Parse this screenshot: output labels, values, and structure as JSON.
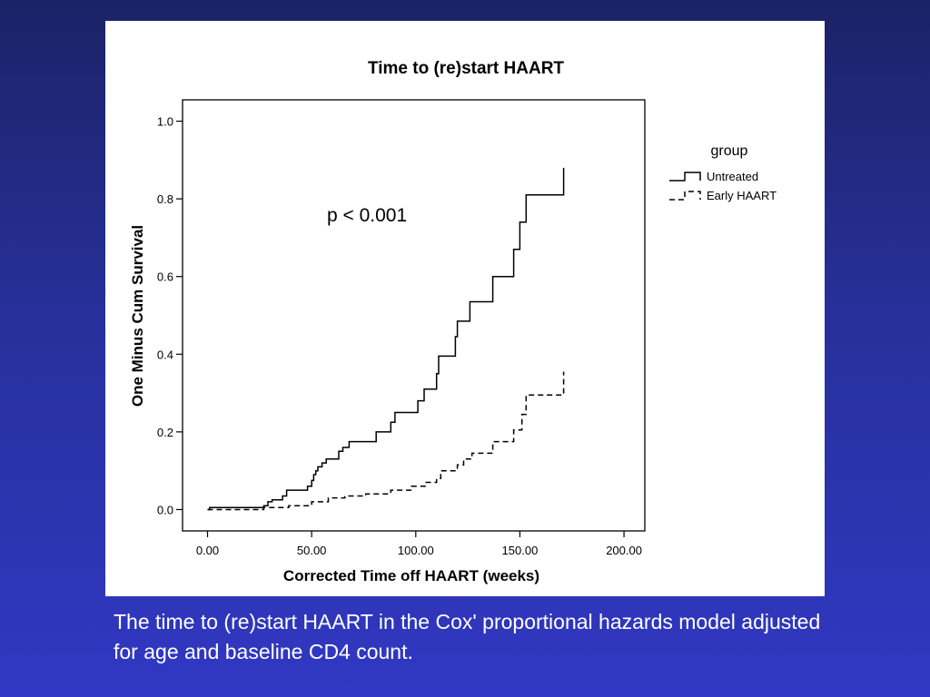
{
  "slide": {
    "background_colors": [
      "#1c2266",
      "#3138c4"
    ],
    "caption": "The time to (re)start HAART in the Cox' proportional hazards model adjusted for age and baseline CD4 count."
  },
  "chart_data": {
    "type": "line",
    "step": true,
    "title": "Time to (re)start HAART",
    "xlabel": "Corrected Time off HAART (weeks)",
    "ylabel": "One Minus Cum Survival",
    "xlim": [
      -12,
      210
    ],
    "ylim": [
      -0.055,
      1.055
    ],
    "x_ticks": [
      0,
      50,
      100,
      150,
      200
    ],
    "x_tick_labels": [
      "0.00",
      "50.00",
      "100.00",
      "150.00",
      "200.00"
    ],
    "y_ticks": [
      0,
      0.2,
      0.4,
      0.6,
      0.8,
      1.0
    ],
    "y_tick_labels": [
      "0.0",
      "0.2",
      "0.4",
      "0.6",
      "0.8",
      "1.0"
    ],
    "grid": false,
    "legend": {
      "title": "group",
      "placement": "right"
    },
    "annotation": "p < 0.001",
    "series": [
      {
        "name": "Untreated",
        "line_style": "solid",
        "color": "#000000",
        "points": [
          [
            0,
            0.0
          ],
          [
            1,
            0.005
          ],
          [
            26,
            0.005
          ],
          [
            27,
            0.01
          ],
          [
            29,
            0.02
          ],
          [
            31,
            0.025
          ],
          [
            36,
            0.035
          ],
          [
            38,
            0.05
          ],
          [
            48,
            0.06
          ],
          [
            50,
            0.075
          ],
          [
            51,
            0.09
          ],
          [
            52,
            0.1
          ],
          [
            53,
            0.11
          ],
          [
            55,
            0.12
          ],
          [
            57,
            0.13
          ],
          [
            63,
            0.15
          ],
          [
            65,
            0.16
          ],
          [
            68,
            0.175
          ],
          [
            81,
            0.2
          ],
          [
            88,
            0.225
          ],
          [
            90,
            0.25
          ],
          [
            101,
            0.28
          ],
          [
            104,
            0.31
          ],
          [
            110,
            0.35
          ],
          [
            111,
            0.395
          ],
          [
            119,
            0.445
          ],
          [
            120,
            0.485
          ],
          [
            126,
            0.535
          ],
          [
            137,
            0.6
          ],
          [
            147,
            0.67
          ],
          [
            150,
            0.74
          ],
          [
            153,
            0.81
          ],
          [
            171,
            0.88
          ]
        ]
      },
      {
        "name": "Early HAART",
        "line_style": "dashed",
        "color": "#000000",
        "points": [
          [
            0,
            0.0
          ],
          [
            27,
            0.005
          ],
          [
            39,
            0.01
          ],
          [
            50,
            0.02
          ],
          [
            58,
            0.03
          ],
          [
            66,
            0.035
          ],
          [
            76,
            0.04
          ],
          [
            88,
            0.05
          ],
          [
            98,
            0.06
          ],
          [
            105,
            0.07
          ],
          [
            110,
            0.08
          ],
          [
            112,
            0.1
          ],
          [
            120,
            0.115
          ],
          [
            123,
            0.13
          ],
          [
            127,
            0.145
          ],
          [
            137,
            0.175
          ],
          [
            147,
            0.205
          ],
          [
            151,
            0.245
          ],
          [
            153,
            0.295
          ],
          [
            171,
            0.355
          ]
        ]
      }
    ]
  }
}
